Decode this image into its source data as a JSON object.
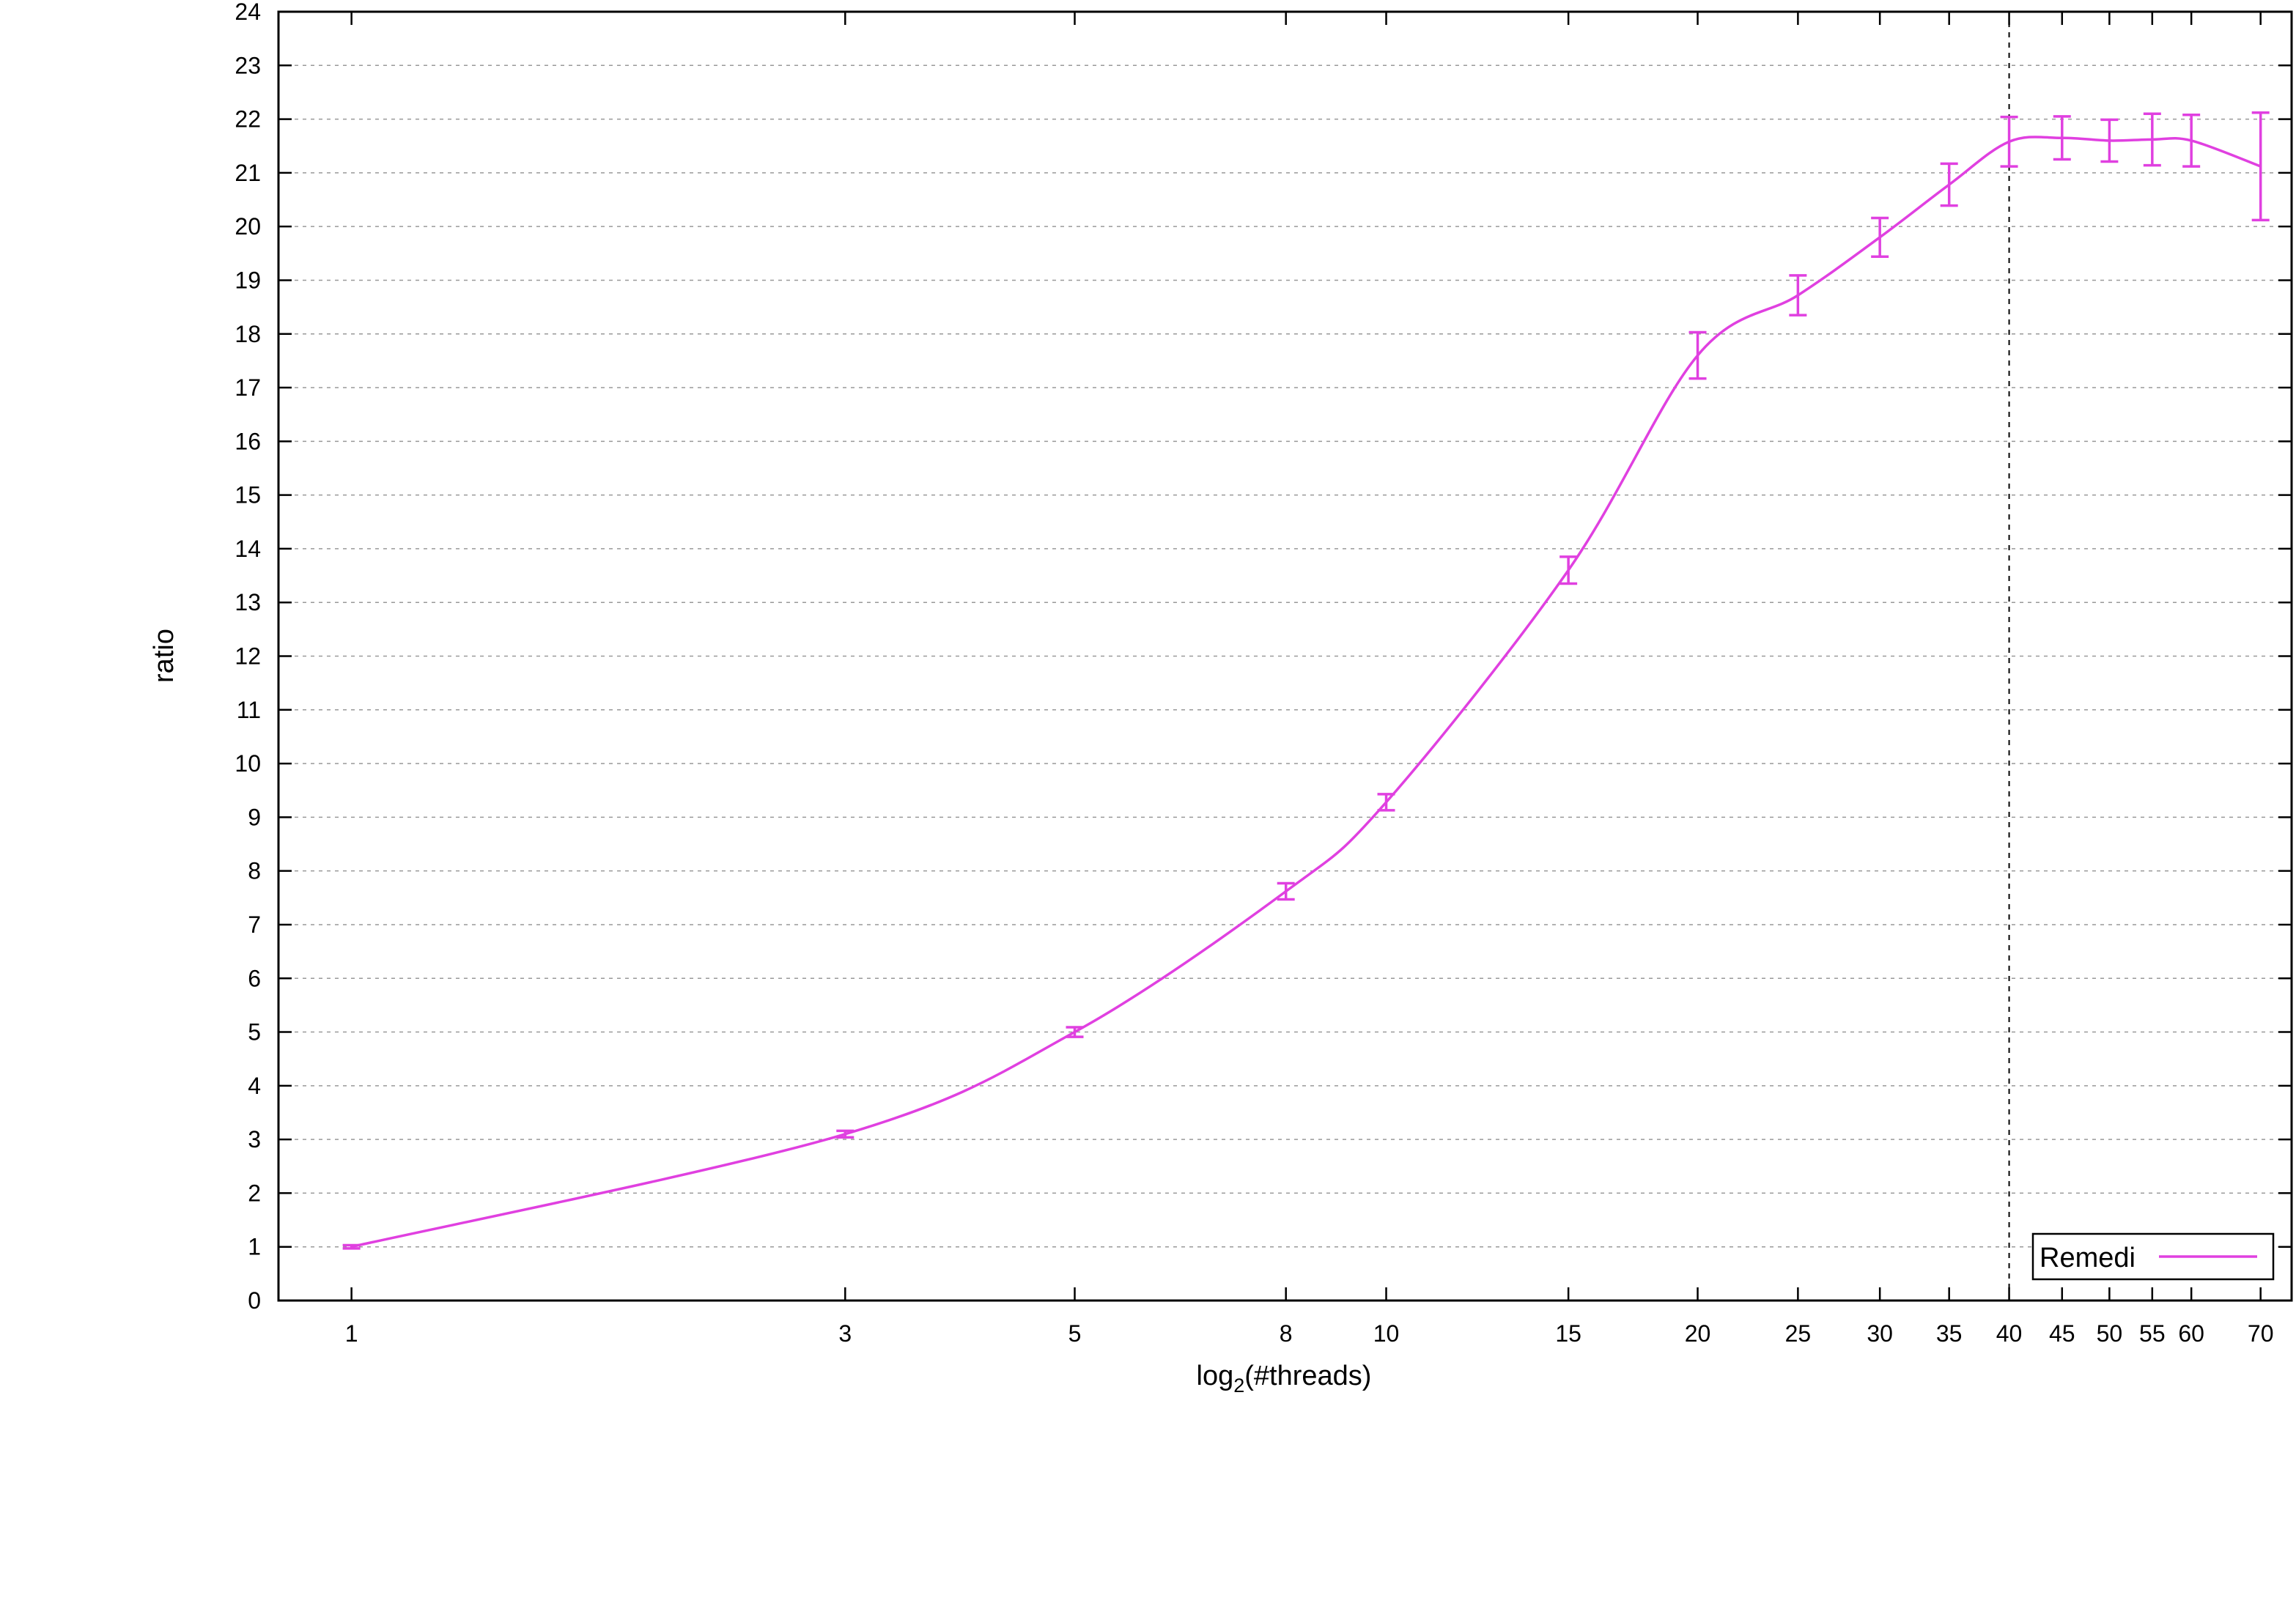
{
  "chart_data": {
    "type": "line",
    "x_scale": "log",
    "xlabel": "log",
    "xlabel_subscript": "2",
    "xlabel_suffix": "(#threads)",
    "ylabel": "ratio",
    "ylim": [
      0,
      24
    ],
    "xlim": [
      0.85,
      75
    ],
    "x_ticks": [
      1,
      3,
      5,
      8,
      10,
      15,
      20,
      25,
      30,
      35,
      40,
      45,
      50,
      55,
      60,
      70
    ],
    "y_ticks": [
      0,
      1,
      2,
      3,
      4,
      5,
      6,
      7,
      8,
      9,
      10,
      11,
      12,
      13,
      14,
      15,
      16,
      17,
      18,
      19,
      20,
      21,
      22,
      23,
      24
    ],
    "grid": "horizontal-dashed",
    "reference_line_x": 40,
    "legend_position": "bottom-right",
    "colors": {
      "series": "#e040e0",
      "axes": "#000000",
      "grid": "#999999"
    },
    "series": [
      {
        "name": "Remedi",
        "x": [
          1,
          3,
          5,
          8,
          10,
          15,
          20,
          25,
          30,
          35,
          40,
          45,
          50,
          55,
          60,
          70
        ],
        "y": [
          1.0,
          3.1,
          5.0,
          7.62,
          9.28,
          13.6,
          17.6,
          18.72,
          19.8,
          20.78,
          21.58,
          21.65,
          21.6,
          21.62,
          21.6,
          21.12
        ],
        "err": [
          0.03,
          0.06,
          0.09,
          0.15,
          0.15,
          0.25,
          0.43,
          0.37,
          0.36,
          0.39,
          0.46,
          0.4,
          0.39,
          0.48,
          0.48,
          1.0
        ]
      }
    ]
  }
}
